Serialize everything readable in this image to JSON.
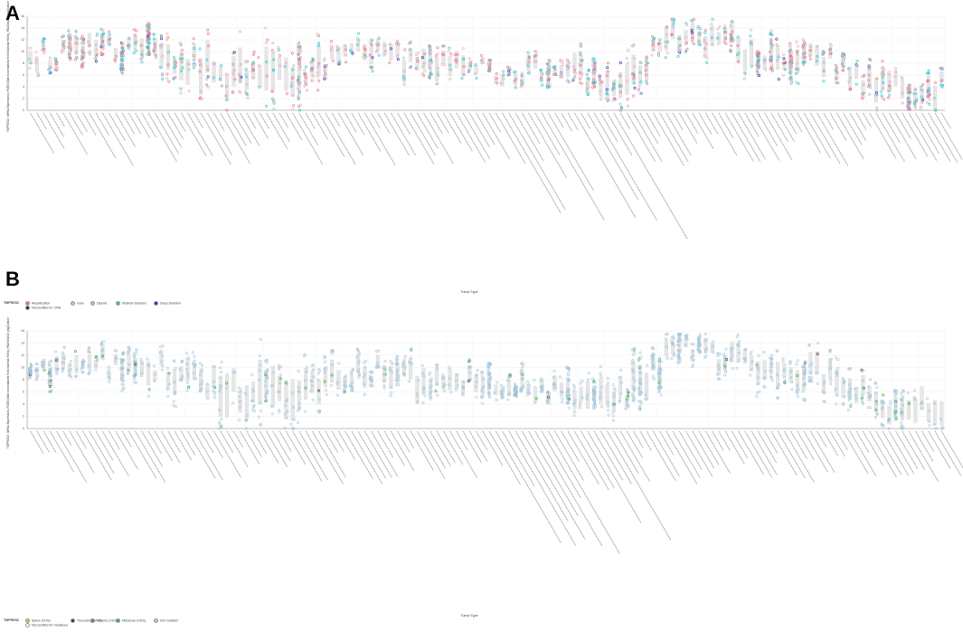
{
  "panels": [
    {
      "letter": "A",
      "legend_title": "TMPRSS2",
      "legend": [
        {
          "label": "Amplification",
          "color": "#e8758a"
        },
        {
          "label": "Not profiled for CNA",
          "color": "#1f2d55"
        },
        {
          "label": "Gain",
          "color": "#f4aab8"
        },
        {
          "label": "Diploid",
          "color": "#b9b9b9"
        },
        {
          "label": "Shallow Deletion",
          "color": "#2ec4d6"
        },
        {
          "label": "Deep Deletion",
          "color": "#1a2fb8"
        }
      ]
    },
    {
      "letter": "B",
      "legend_title": "TMPRSS2",
      "legend": [
        {
          "label": "Splice (VUS)",
          "color": "#f0b34a"
        },
        {
          "label": "Not profiled for mutations",
          "color": "#ffffff"
        },
        {
          "label": "Truncating (VUS)",
          "color": "#3a3a3a"
        },
        {
          "label": "Inframe (VUS)",
          "color": "#9b6f3a"
        },
        {
          "label": "Missense (VUS)",
          "color": "#3cb043"
        },
        {
          "label": "Not mutated",
          "color": "#a8c8dc"
        }
      ]
    }
  ],
  "chart_data": [
    {
      "type": "scatter",
      "panel": "A",
      "title": "",
      "xlabel": "Tumor Type",
      "ylabel": "TMPRSS2: mRNA Expression, RSEM (Batch normalized from Illumina HiSeq_RNASeqV2) (log2(value + 1))",
      "ylim": [
        0,
        16
      ],
      "yticks": [
        0,
        2,
        4,
        6,
        8,
        10,
        12,
        14,
        16
      ],
      "grid": true,
      "n_categories": 140,
      "series_colors": [
        "#e8758a",
        "#f4aab8",
        "#b9b9b9",
        "#2ec4d6",
        "#1a2fb8",
        "#1f2d55"
      ],
      "categories_summary": [
        {
          "index": 0,
          "median": 9,
          "spread": 2
        },
        {
          "index": 10,
          "median": 11,
          "spread": 2
        },
        {
          "index": 20,
          "median": 10,
          "spread": 3
        },
        {
          "index": 30,
          "median": 6,
          "spread": 5
        },
        {
          "index": 40,
          "median": 6,
          "spread": 5
        },
        {
          "index": 50,
          "median": 10,
          "spread": 2
        },
        {
          "index": 60,
          "median": 8,
          "spread": 3
        },
        {
          "index": 70,
          "median": 7,
          "spread": 2
        },
        {
          "index": 80,
          "median": 7,
          "spread": 2
        },
        {
          "index": 90,
          "median": 5,
          "spread": 4
        },
        {
          "index": 100,
          "median": 14,
          "spread": 2
        },
        {
          "index": 110,
          "median": 10,
          "spread": 3
        },
        {
          "index": 120,
          "median": 9,
          "spread": 3
        },
        {
          "index": 130,
          "median": 4,
          "spread": 3
        }
      ]
    },
    {
      "type": "scatter",
      "panel": "B",
      "title": "",
      "xlabel": "Tumor Type",
      "ylabel": "TMPRSS2: mRNA Expression, RSEM (Batch normalized from Illumina HiSeq_RNASeqV2) (log2(value + 1))",
      "ylim": [
        0,
        16
      ],
      "yticks": [
        0,
        2,
        4,
        6,
        8,
        10,
        12,
        14,
        16
      ],
      "grid": true,
      "n_categories": 140,
      "series_colors": [
        "#a8c8dc",
        "#3cb043",
        "#3a3a3a"
      ],
      "categories_summary": [
        {
          "index": 0,
          "median": 9,
          "spread": 2
        },
        {
          "index": 10,
          "median": 11,
          "spread": 2
        },
        {
          "index": 20,
          "median": 10,
          "spread": 3
        },
        {
          "index": 30,
          "median": 6,
          "spread": 5
        },
        {
          "index": 40,
          "median": 6,
          "spread": 5
        },
        {
          "index": 50,
          "median": 10,
          "spread": 2
        },
        {
          "index": 60,
          "median": 8,
          "spread": 3
        },
        {
          "index": 70,
          "median": 7,
          "spread": 2
        },
        {
          "index": 80,
          "median": 7,
          "spread": 2
        },
        {
          "index": 90,
          "median": 5,
          "spread": 4
        },
        {
          "index": 100,
          "median": 14,
          "spread": 2
        },
        {
          "index": 110,
          "median": 10,
          "spread": 3
        },
        {
          "index": 120,
          "median": 9,
          "spread": 3
        },
        {
          "index": 130,
          "median": 4,
          "spread": 3
        }
      ]
    }
  ]
}
